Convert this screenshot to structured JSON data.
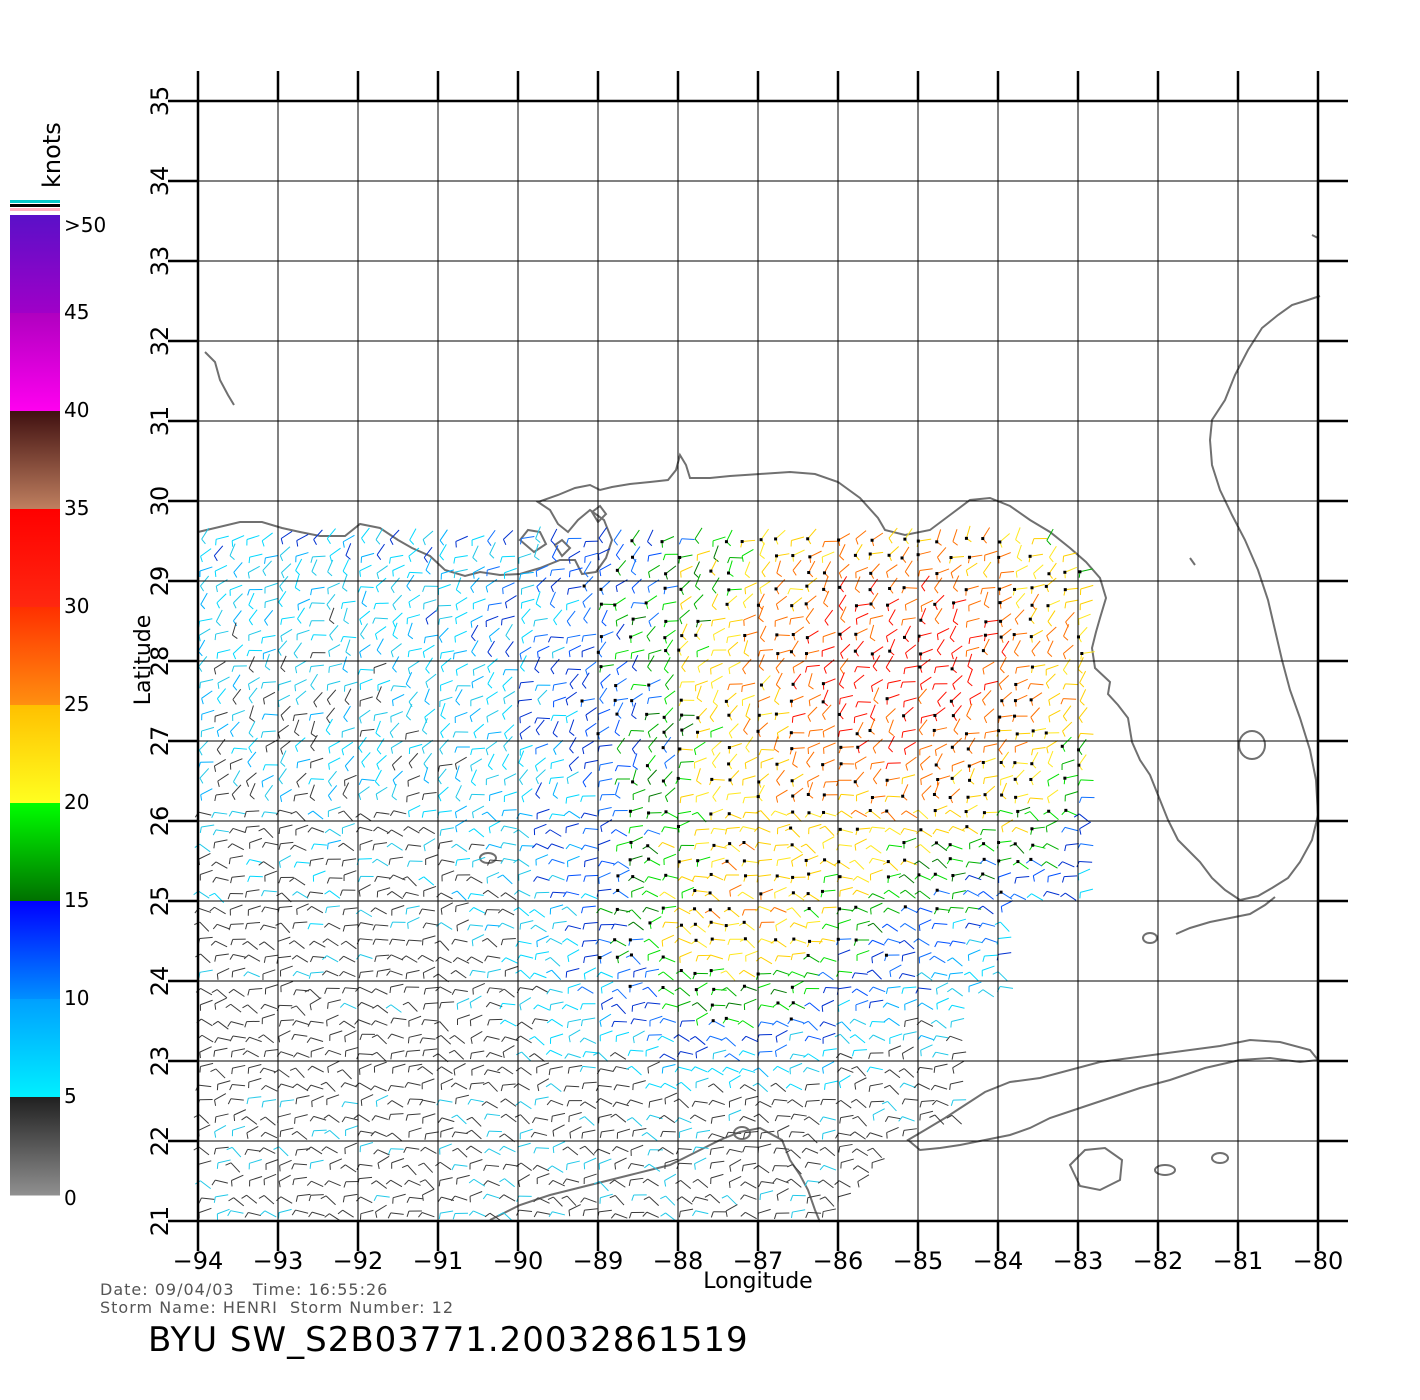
{
  "colorbar": {
    "unit_label": "knots",
    "tick_labels": [
      ">50",
      "45",
      "40",
      "35",
      "30",
      "25",
      "20",
      "15",
      "10",
      "5",
      "0"
    ],
    "segments": [
      {
        "colors": [
          "#5a10c8",
          "#a000c8"
        ]
      },
      {
        "colors": [
          "#b000c0",
          "#ff00f0"
        ]
      },
      {
        "colors": [
          "#401010",
          "#c08060"
        ]
      },
      {
        "colors": [
          "#ff0000",
          "#ff2810"
        ]
      },
      {
        "colors": [
          "#ff3000",
          "#ff9010"
        ]
      },
      {
        "colors": [
          "#ffc000",
          "#ffff20"
        ]
      },
      {
        "colors": [
          "#00ff00",
          "#007000"
        ]
      },
      {
        "colors": [
          "#0000ff",
          "#0090ff"
        ]
      },
      {
        "colors": [
          "#00a0ff",
          "#00f0ff"
        ]
      },
      {
        "colors": [
          "#202020",
          "#909090"
        ]
      }
    ],
    "top_stripe_colors": [
      "#00c8c8",
      "#000000",
      "#ffb0c0"
    ]
  },
  "axes": {
    "xlabel": "Longitude",
    "ylabel": "Latitude",
    "x_ticks": [
      "-94",
      "-93",
      "-92",
      "-91",
      "-90",
      "-89",
      "-88",
      "-87",
      "-86",
      "-85",
      "-84",
      "-83",
      "-82",
      "-81",
      "-80"
    ],
    "y_ticks": [
      "21",
      "22",
      "23",
      "24",
      "25",
      "26",
      "27",
      "28",
      "29",
      "30",
      "31",
      "32",
      "33",
      "34",
      "35"
    ],
    "xlim": [
      -94,
      -80
    ],
    "ylim": [
      21,
      35
    ],
    "grid": true
  },
  "footer": {
    "date_label": "Date:",
    "date": "09/04/03",
    "time_label": "Time:",
    "time": "16:55:26",
    "storm_name_label": "Storm Name:",
    "storm_name": "HENRI",
    "storm_number_label": "Storm Number:",
    "storm_number": "12",
    "product_id": "BYU SW_S2B03771.20032861519"
  },
  "colors": {
    "coastline": "#707070",
    "grid": "#000000"
  }
}
